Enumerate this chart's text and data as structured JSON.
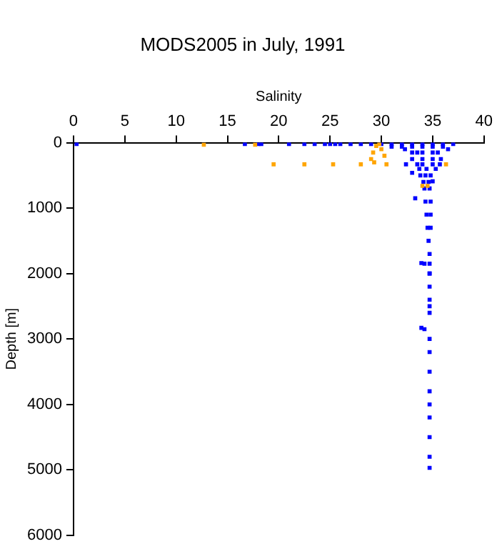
{
  "chart_data": {
    "type": "scatter",
    "title": "MODS2005 in July, 1991",
    "xlabel": "Salinity",
    "ylabel": "Depth [m]",
    "xlim": [
      0,
      40
    ],
    "xticks": [
      0,
      5,
      10,
      15,
      20,
      25,
      30,
      35,
      40
    ],
    "ylim": [
      6000,
      0
    ],
    "yticks": [
      0,
      1000,
      2000,
      3000,
      4000,
      5000,
      6000
    ],
    "marker": "square",
    "series": [
      {
        "color": "#0000ff",
        "x": [
          0.3,
          16.7,
          18,
          18.3,
          21,
          22.5,
          23.5,
          24.5,
          25,
          25.5,
          26,
          27,
          28,
          29,
          30,
          31,
          32,
          33,
          34,
          35,
          36,
          37,
          31,
          32,
          33,
          34,
          35,
          36,
          36.5,
          32.3,
          33,
          33.5,
          34,
          35,
          35.5,
          33,
          34,
          35,
          35.8,
          32.4,
          33.5,
          34,
          35,
          35.7,
          33,
          33.7,
          34.4,
          35.3,
          35,
          33.8,
          34.3,
          34.8,
          33.3,
          34.1,
          34.6,
          34.2,
          34.7,
          34.3,
          34.8,
          34.4,
          34.8,
          34.5,
          34.8,
          33.9,
          34.2,
          34.7,
          34.6,
          34.7,
          33.9,
          34.2,
          34.7,
          34.7,
          34.7,
          34.7,
          34.7,
          34.7,
          34.7,
          34.7,
          34.7,
          34.7,
          34.7,
          34.7,
          34.7,
          34.7,
          34.7
        ],
        "values": [
          20,
          20,
          20,
          20,
          20,
          20,
          20,
          20,
          20,
          20,
          20,
          20,
          20,
          20,
          20,
          20,
          20,
          20,
          20,
          20,
          20,
          20,
          60,
          60,
          60,
          60,
          60,
          60,
          100,
          100,
          150,
          150,
          150,
          150,
          150,
          250,
          250,
          250,
          250,
          330,
          330,
          330,
          330,
          330,
          460,
          400,
          400,
          400,
          590,
          500,
          500,
          500,
          850,
          600,
          600,
          700,
          700,
          900,
          900,
          1100,
          1100,
          1300,
          1300,
          1840,
          1850,
          1850,
          1500,
          1700,
          2830,
          2850,
          2600,
          2500,
          3000,
          3500,
          4000,
          4500,
          4970,
          2000,
          2200,
          2400,
          3200,
          3800,
          4200,
          4800,
          2000
        ]
      },
      {
        "color": "#ffa500",
        "x": [
          12.7,
          17.7,
          19.5,
          22.5,
          25.3,
          28,
          29,
          29.2,
          29.5,
          29.8,
          30,
          30.3,
          30.5,
          29.3,
          36.3,
          34,
          34.5
        ],
        "values": [
          30,
          30,
          330,
          330,
          330,
          330,
          250,
          150,
          50,
          20,
          100,
          200,
          330,
          300,
          330,
          660,
          660
        ]
      }
    ]
  }
}
